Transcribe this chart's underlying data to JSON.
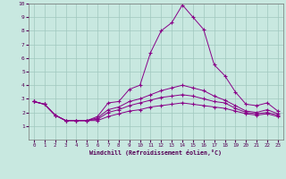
{
  "bg_color": "#c8e8e0",
  "grid_color": "#a0c8be",
  "line_color": "#880088",
  "xlabel": "Windchill (Refroidissement éolien,°C)",
  "xlim": [
    -0.5,
    23.5
  ],
  "ylim": [
    0,
    10
  ],
  "xticks": [
    0,
    1,
    2,
    3,
    4,
    5,
    6,
    7,
    8,
    9,
    10,
    11,
    12,
    13,
    14,
    15,
    16,
    17,
    18,
    19,
    20,
    21,
    22,
    23
  ],
  "yticks": [
    1,
    2,
    3,
    4,
    5,
    6,
    7,
    8,
    9,
    10
  ],
  "line1_x": [
    0,
    1,
    2,
    3,
    4,
    5,
    6,
    7,
    8,
    9,
    10,
    11,
    12,
    13,
    14,
    15,
    16,
    17,
    18,
    19,
    20,
    21,
    22,
    23
  ],
  "line1_y": [
    2.8,
    2.6,
    1.8,
    1.4,
    1.4,
    1.4,
    1.7,
    2.7,
    2.8,
    3.7,
    4.0,
    6.4,
    8.0,
    8.6,
    9.9,
    9.0,
    8.1,
    5.5,
    4.7,
    3.5,
    2.6,
    2.5,
    2.7,
    2.1
  ],
  "line2_x": [
    0,
    1,
    2,
    3,
    4,
    5,
    6,
    7,
    8,
    9,
    10,
    11,
    12,
    13,
    14,
    15,
    16,
    17,
    18,
    19,
    20,
    21,
    22,
    23
  ],
  "line2_y": [
    2.8,
    2.6,
    1.8,
    1.4,
    1.4,
    1.4,
    1.6,
    2.2,
    2.4,
    2.8,
    3.0,
    3.3,
    3.6,
    3.8,
    4.0,
    3.8,
    3.6,
    3.2,
    2.9,
    2.5,
    2.1,
    2.0,
    2.2,
    1.9
  ],
  "line3_x": [
    0,
    1,
    2,
    3,
    4,
    5,
    6,
    7,
    8,
    9,
    10,
    11,
    12,
    13,
    14,
    15,
    16,
    17,
    18,
    19,
    20,
    21,
    22,
    23
  ],
  "line3_y": [
    2.8,
    2.6,
    1.8,
    1.4,
    1.4,
    1.4,
    1.5,
    2.0,
    2.2,
    2.5,
    2.7,
    2.9,
    3.1,
    3.2,
    3.3,
    3.2,
    3.0,
    2.8,
    2.7,
    2.3,
    2.0,
    1.9,
    2.0,
    1.8
  ],
  "line4_x": [
    0,
    1,
    2,
    3,
    4,
    5,
    6,
    7,
    8,
    9,
    10,
    11,
    12,
    13,
    14,
    15,
    16,
    17,
    18,
    19,
    20,
    21,
    22,
    23
  ],
  "line4_y": [
    2.8,
    2.6,
    1.8,
    1.4,
    1.4,
    1.4,
    1.4,
    1.7,
    1.9,
    2.1,
    2.2,
    2.4,
    2.5,
    2.6,
    2.7,
    2.6,
    2.5,
    2.4,
    2.3,
    2.1,
    1.9,
    1.8,
    1.9,
    1.7
  ]
}
